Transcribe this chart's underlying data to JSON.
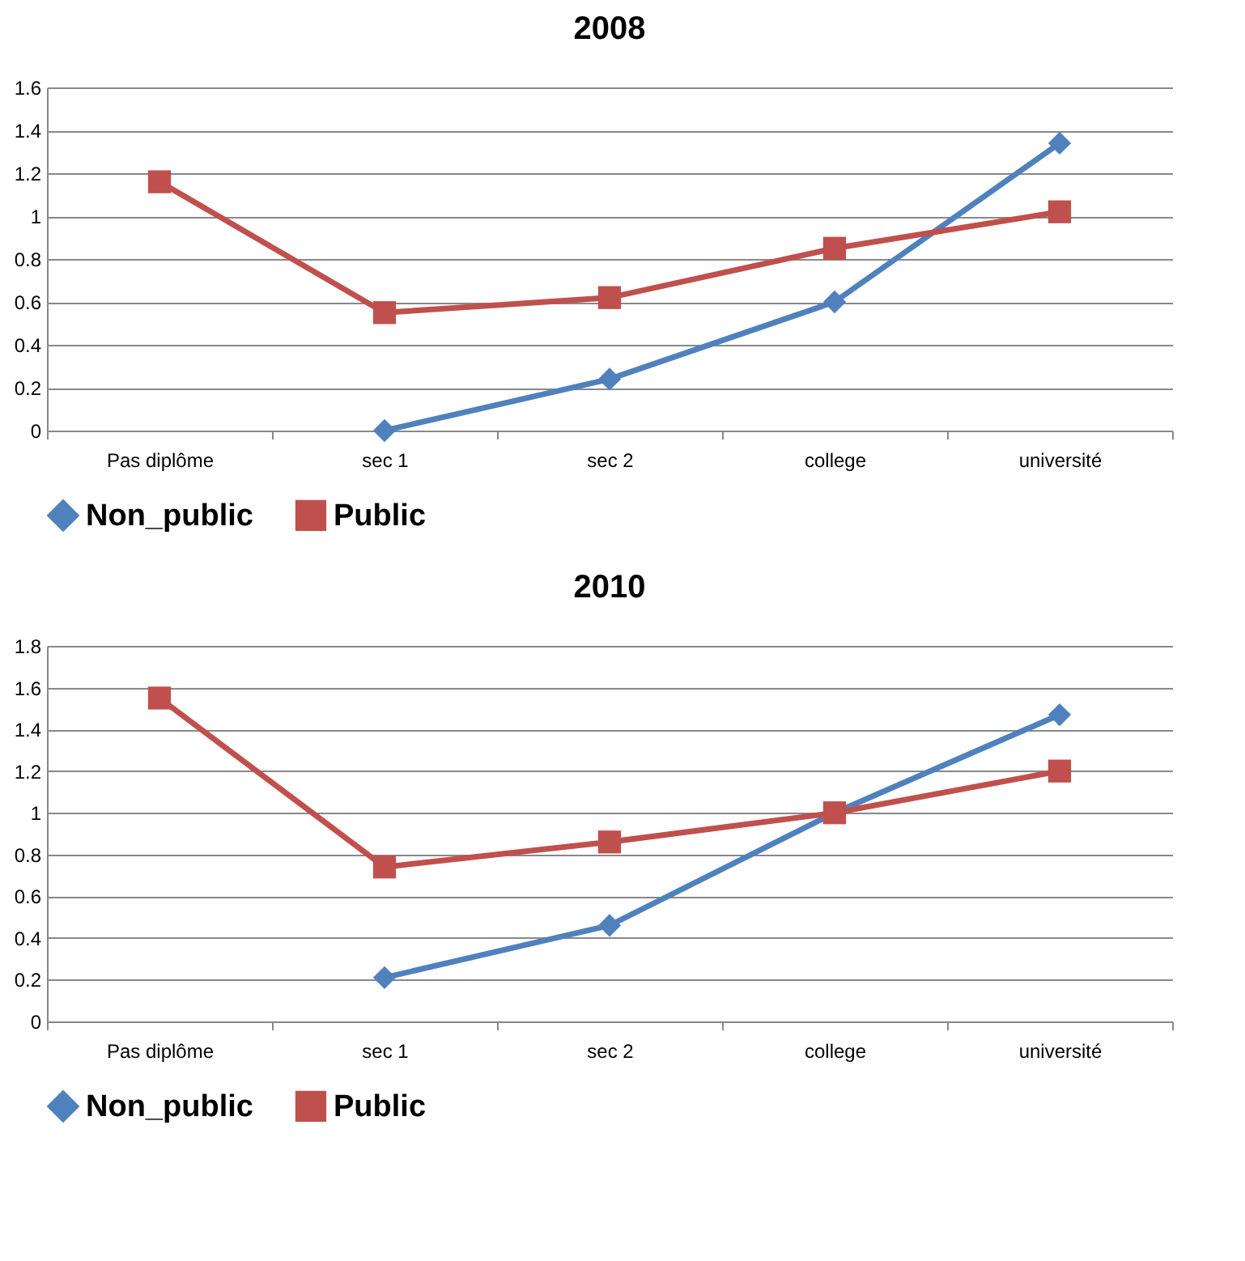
{
  "chart_data": [
    {
      "type": "line",
      "title": "2008",
      "categories": [
        "Pas diplôme",
        "sec 1",
        "sec 2",
        "college",
        "université"
      ],
      "ylim": [
        0,
        1.6
      ],
      "yticks": [
        0,
        0.2,
        0.4,
        0.6,
        0.8,
        1,
        1.2,
        1.4,
        1.6
      ],
      "grid": "y",
      "legend": "bottom",
      "series": [
        {
          "name": "Non_public",
          "color": "#4f81bd",
          "marker": "diamond",
          "values": [
            null,
            0,
            0.24,
            0.6,
            1.34
          ]
        },
        {
          "name": "Public",
          "color": "#c0504d",
          "marker": "square",
          "values": [
            1.16,
            0.55,
            0.62,
            0.85,
            1.02
          ]
        }
      ]
    },
    {
      "type": "line",
      "title": "2010",
      "categories": [
        "Pas diplôme",
        "sec 1",
        "sec 2",
        "college",
        "université"
      ],
      "ylim": [
        0,
        1.8
      ],
      "yticks": [
        0,
        0.2,
        0.4,
        0.6,
        0.8,
        1,
        1.2,
        1.4,
        1.6,
        1.8
      ],
      "grid": "y",
      "legend": "bottom",
      "series": [
        {
          "name": "Non_public",
          "color": "#4f81bd",
          "marker": "diamond",
          "values": [
            null,
            0.21,
            0.46,
            1.0,
            1.47
          ]
        },
        {
          "name": "Public",
          "color": "#c0504d",
          "marker": "square",
          "values": [
            1.55,
            0.74,
            0.86,
            1.0,
            1.2
          ]
        }
      ]
    }
  ]
}
